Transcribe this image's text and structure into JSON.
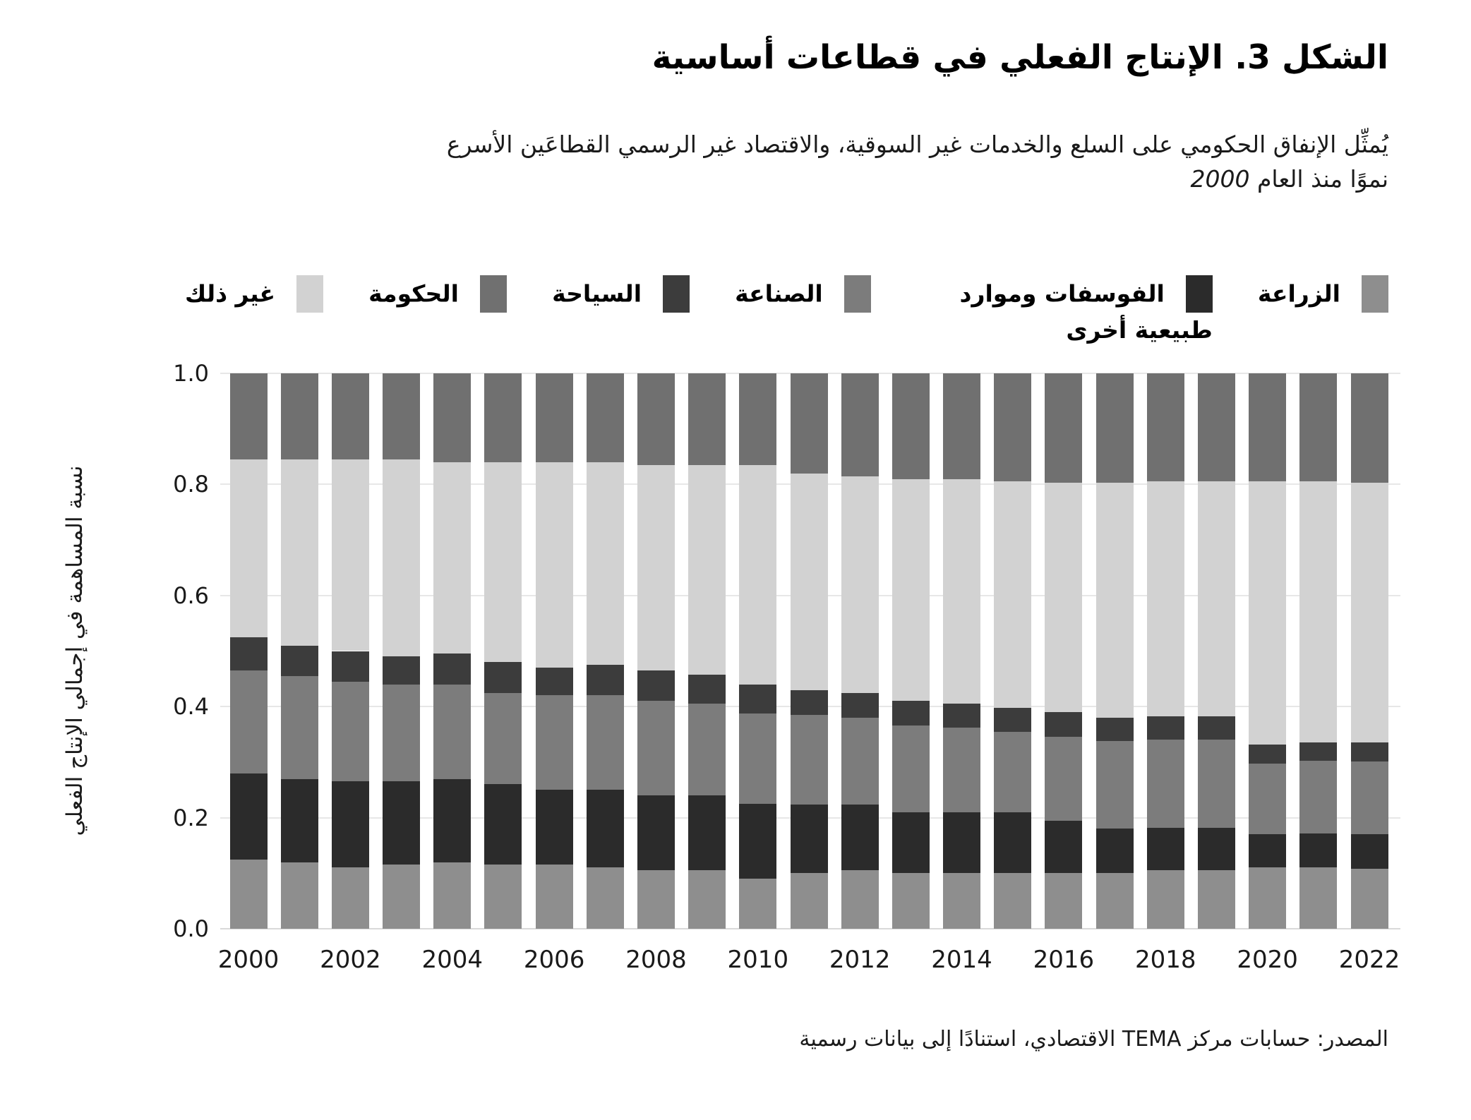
{
  "figure": {
    "title": "الشكل 3. الإنتاج الفعلي في قطاعات أساسية",
    "subtitle_line1": "يُمثِّل الإنفاق الحكومي على السلع والخدمات غير السوقية، والاقتصاد غير الرسمي القطاعَين الأسرع",
    "subtitle_line2": "نموًا منذ العام",
    "subtitle_year": "2000",
    "y_axis_title": "نسبة المساهمة في إجمالي الإنتاج الفعلي",
    "source": "المصدر: حسابات مركز TEMA الاقتصادي، استنادًا إلى بيانات رسمية"
  },
  "legend": [
    {
      "label": "الزراعة",
      "color": "#8e8e8e"
    },
    {
      "label": "الفوسفات وموارد طبيعية أخرى",
      "color": "#2b2b2b"
    },
    {
      "label": "الصناعة",
      "color": "#7c7c7c"
    },
    {
      "label": "السياحة",
      "color": "#3c3c3c"
    },
    {
      "label": "الحكومة",
      "color": "#707070"
    },
    {
      "label": "غير ذلك",
      "color": "#d2d2d2"
    }
  ],
  "chart_data": {
    "type": "bar",
    "stacked": true,
    "grid": true,
    "legend_position": "top",
    "ylim": [
      0,
      1
    ],
    "ylabel": "نسبة المساهمة في إجمالي الإنتاج الفعلي",
    "y_tick_labels": [
      "0.0",
      "0.2",
      "0.4",
      "0.6",
      "0.8",
      "1.0"
    ],
    "y_tick_values": [
      0,
      0.2,
      0.4,
      0.6,
      0.8,
      1.0
    ],
    "categories": [
      2000,
      2001,
      2002,
      2003,
      2004,
      2005,
      2006,
      2007,
      2008,
      2009,
      2010,
      2011,
      2012,
      2013,
      2014,
      2015,
      2016,
      2017,
      2018,
      2019,
      2020,
      2021,
      2022
    ],
    "x_tick_labels": [
      "2000",
      "2002",
      "2004",
      "2006",
      "2008",
      "2010",
      "2012",
      "2014",
      "2016",
      "2018",
      "2020",
      "2022"
    ],
    "stack_order_note": "bottom to top",
    "series": [
      {
        "name": "الزراعة",
        "color": "#8e8e8e",
        "values": [
          0.125,
          0.12,
          0.11,
          0.115,
          0.12,
          0.115,
          0.115,
          0.11,
          0.105,
          0.105,
          0.09,
          0.1,
          0.105,
          0.1,
          0.1,
          0.1,
          0.1,
          0.1,
          0.105,
          0.105,
          0.11,
          0.11,
          0.108
        ]
      },
      {
        "name": "الفوسفات وموارد طبيعية أخرى",
        "color": "#2b2b2b",
        "values": [
          0.155,
          0.15,
          0.155,
          0.15,
          0.15,
          0.145,
          0.135,
          0.14,
          0.135,
          0.135,
          0.135,
          0.123,
          0.118,
          0.11,
          0.11,
          0.11,
          0.095,
          0.08,
          0.077,
          0.077,
          0.06,
          0.062,
          0.062
        ]
      },
      {
        "name": "الصناعة",
        "color": "#7c7c7c",
        "values": [
          0.185,
          0.185,
          0.18,
          0.175,
          0.17,
          0.165,
          0.17,
          0.17,
          0.17,
          0.165,
          0.162,
          0.162,
          0.157,
          0.156,
          0.152,
          0.145,
          0.15,
          0.158,
          0.158,
          0.158,
          0.127,
          0.131,
          0.131
        ]
      },
      {
        "name": "السياحة",
        "color": "#3c3c3c",
        "values": [
          0.06,
          0.055,
          0.055,
          0.05,
          0.055,
          0.055,
          0.05,
          0.055,
          0.055,
          0.053,
          0.053,
          0.045,
          0.045,
          0.044,
          0.043,
          0.043,
          0.045,
          0.042,
          0.042,
          0.042,
          0.035,
          0.032,
          0.034
        ]
      },
      {
        "name": "غير ذلك",
        "color": "#d2d2d2",
        "values": [
          0.32,
          0.335,
          0.345,
          0.355,
          0.345,
          0.36,
          0.37,
          0.365,
          0.37,
          0.377,
          0.395,
          0.39,
          0.39,
          0.4,
          0.405,
          0.408,
          0.413,
          0.423,
          0.423,
          0.424,
          0.473,
          0.47,
          0.468
        ]
      },
      {
        "name": "الحكومة",
        "color": "#707070",
        "values": [
          0.155,
          0.155,
          0.155,
          0.155,
          0.16,
          0.16,
          0.16,
          0.16,
          0.165,
          0.165,
          0.165,
          0.18,
          0.185,
          0.19,
          0.19,
          0.194,
          0.197,
          0.197,
          0.195,
          0.194,
          0.195,
          0.195,
          0.197
        ]
      }
    ]
  }
}
